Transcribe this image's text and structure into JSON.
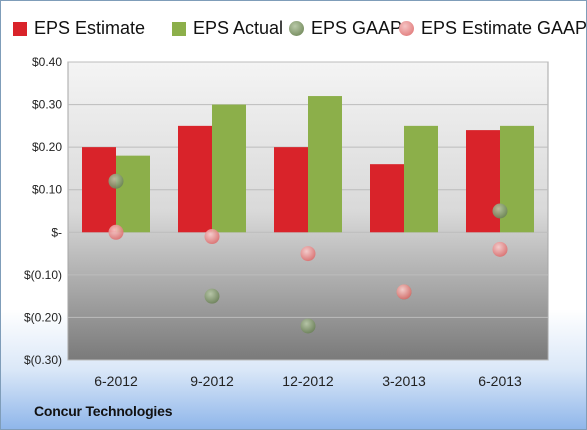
{
  "company": "Concur Technologies",
  "colors": {
    "eps_estimate": "#d9232a",
    "eps_actual": "#8caf4a",
    "eps_gaap": "#7e9468",
    "eps_estimate_gaap": "#e48686",
    "plot_top": "#f2f2f2",
    "plot_bottom": "#7d7d7d"
  },
  "chart_data": {
    "type": "bar",
    "categories": [
      "6-2012",
      "9-2012",
      "12-2012",
      "3-2013",
      "6-2013"
    ],
    "series": [
      {
        "name": "EPS Estimate",
        "kind": "bar",
        "values": [
          0.2,
          0.25,
          0.2,
          0.16,
          0.24
        ]
      },
      {
        "name": "EPS Actual",
        "kind": "bar",
        "values": [
          0.18,
          0.3,
          0.32,
          0.25,
          0.25
        ]
      },
      {
        "name": "EPS GAAP",
        "kind": "marker",
        "values": [
          0.12,
          -0.15,
          -0.22,
          -0.14,
          0.05
        ]
      },
      {
        "name": "EPS Estimate GAAP",
        "kind": "marker",
        "values": [
          0.0,
          -0.01,
          -0.05,
          -0.14,
          -0.04
        ]
      }
    ],
    "ylim": [
      -0.3,
      0.4
    ],
    "y_ticks": [
      {
        "value": 0.4,
        "label": "$0.40"
      },
      {
        "value": 0.3,
        "label": "$0.30"
      },
      {
        "value": 0.2,
        "label": "$0.20"
      },
      {
        "value": 0.1,
        "label": "$0.10"
      },
      {
        "value": 0.0,
        "label": "$-"
      },
      {
        "value": -0.1,
        "label": "$(0.10)"
      },
      {
        "value": -0.2,
        "label": "$(0.20)"
      },
      {
        "value": -0.3,
        "label": "$(0.30)"
      }
    ],
    "legend_position": "top",
    "grid": "horizontal"
  }
}
